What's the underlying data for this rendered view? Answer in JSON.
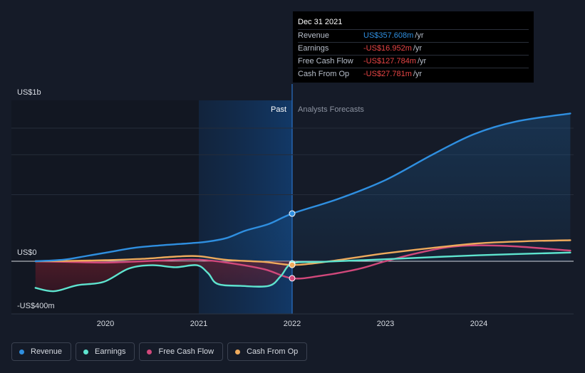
{
  "chart_data": {
    "type": "line",
    "ylim": [
      -400,
      1200
    ],
    "y_tick_labels": [
      {
        "label": "US$1b",
        "value": 1000
      },
      {
        "label": "US$0",
        "value": 0
      },
      {
        "label": "-US$400m",
        "value": -400
      }
    ],
    "x_ticks": [
      {
        "label": "2020",
        "value": 2020.0
      },
      {
        "label": "2021",
        "value": 2021.0
      },
      {
        "label": "2022",
        "value": 2022.0
      },
      {
        "label": "2023",
        "value": 2023.0
      },
      {
        "label": "2024",
        "value": 2024.0
      }
    ],
    "x_range": [
      2019.0,
      2025.0
    ],
    "divider_x": 2022.0,
    "past_label": "Past",
    "forecast_label": "Analysts Forecasts",
    "series": [
      {
        "name": "Revenue",
        "color": "#2f8fe0",
        "points": [
          [
            2019.25,
            0
          ],
          [
            2019.55,
            12
          ],
          [
            2019.8,
            40
          ],
          [
            2020.05,
            70
          ],
          [
            2020.3,
            100
          ],
          [
            2020.6,
            120
          ],
          [
            2020.9,
            135
          ],
          [
            2021.1,
            148
          ],
          [
            2021.3,
            175
          ],
          [
            2021.5,
            230
          ],
          [
            2021.75,
            280
          ],
          [
            2022.0,
            358
          ],
          [
            2022.5,
            470
          ],
          [
            2023.0,
            610
          ],
          [
            2023.5,
            800
          ],
          [
            2023.95,
            955
          ],
          [
            2024.4,
            1050
          ],
          [
            2024.98,
            1110
          ]
        ]
      },
      {
        "name": "Earnings",
        "color": "#5ee4cf",
        "points": [
          [
            2019.25,
            -200
          ],
          [
            2019.45,
            -225
          ],
          [
            2019.7,
            -180
          ],
          [
            2019.98,
            -155
          ],
          [
            2020.25,
            -55
          ],
          [
            2020.5,
            -30
          ],
          [
            2020.75,
            -45
          ],
          [
            2020.98,
            -30
          ],
          [
            2021.1,
            -90
          ],
          [
            2021.2,
            -170
          ],
          [
            2021.45,
            -185
          ],
          [
            2021.75,
            -185
          ],
          [
            2021.88,
            -110
          ],
          [
            2022.0,
            -17
          ],
          [
            2022.3,
            -5
          ],
          [
            2023.0,
            15
          ],
          [
            2024.0,
            45
          ],
          [
            2024.98,
            65
          ]
        ]
      },
      {
        "name": "Free Cash Flow",
        "color": "#d1487b",
        "points": [
          [
            2019.25,
            0
          ],
          [
            2019.6,
            -5
          ],
          [
            2020.0,
            -10
          ],
          [
            2020.4,
            0
          ],
          [
            2020.75,
            10
          ],
          [
            2021.0,
            12
          ],
          [
            2021.3,
            -10
          ],
          [
            2021.7,
            -60
          ],
          [
            2022.0,
            -128
          ],
          [
            2022.3,
            -110
          ],
          [
            2022.7,
            -60
          ],
          [
            2023.0,
            0
          ],
          [
            2023.4,
            70
          ],
          [
            2023.8,
            115
          ],
          [
            2024.3,
            115
          ],
          [
            2024.98,
            80
          ]
        ]
      },
      {
        "name": "Cash From Op",
        "color": "#eeaa5c",
        "points": [
          [
            2019.25,
            0
          ],
          [
            2019.6,
            2
          ],
          [
            2020.0,
            8
          ],
          [
            2020.4,
            18
          ],
          [
            2020.75,
            35
          ],
          [
            2021.0,
            38
          ],
          [
            2021.3,
            10
          ],
          [
            2021.7,
            -5
          ],
          [
            2022.0,
            -28
          ],
          [
            2022.3,
            -10
          ],
          [
            2022.7,
            30
          ],
          [
            2023.0,
            60
          ],
          [
            2023.5,
            100
          ],
          [
            2024.0,
            135
          ],
          [
            2024.5,
            150
          ],
          [
            2024.98,
            158
          ]
        ]
      }
    ]
  },
  "tooltip": {
    "date": "Dec 31 2021",
    "rows": [
      {
        "label": "Revenue",
        "value": "US$357.608m",
        "unit": "/yr",
        "color": "#2f8fe0"
      },
      {
        "label": "Earnings",
        "value": "-US$16.952m",
        "unit": "/yr",
        "color": "#e84545"
      },
      {
        "label": "Free Cash Flow",
        "value": "-US$127.784m",
        "unit": "/yr",
        "color": "#e84545"
      },
      {
        "label": "Cash From Op",
        "value": "-US$27.781m",
        "unit": "/yr",
        "color": "#e84545"
      }
    ]
  },
  "legend": [
    {
      "label": "Revenue",
      "color": "#2f8fe0"
    },
    {
      "label": "Earnings",
      "color": "#5ee4cf"
    },
    {
      "label": "Free Cash Flow",
      "color": "#d1487b"
    },
    {
      "label": "Cash From Op",
      "color": "#eeaa5c"
    }
  ]
}
